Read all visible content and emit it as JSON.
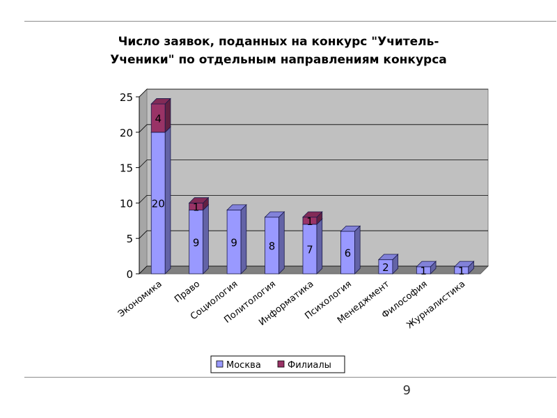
{
  "page": {
    "number": "9"
  },
  "chart_data": {
    "type": "bar",
    "stacked": true,
    "three_d": true,
    "title_lines": [
      "Число заявок, поданных на конкурс \"Учитель-",
      "Ученики\" по отдельным направлениям конкурса"
    ],
    "categories": [
      "Экономика",
      "Право",
      "Социология",
      "Политология",
      "Информатика",
      "Психология",
      "Менеджмент",
      "Философия",
      "Журналистика"
    ],
    "series": [
      {
        "name": "Москва",
        "values": [
          20,
          9,
          9,
          8,
          7,
          6,
          2,
          1,
          1
        ],
        "color": "#9999ff"
      },
      {
        "name": "Филиалы",
        "values": [
          4,
          1,
          0,
          0,
          1,
          0,
          0,
          0,
          0
        ],
        "color": "#993366"
      }
    ],
    "ylim": [
      0,
      25
    ],
    "yticks": [
      "0",
      "5",
      "10",
      "15",
      "20",
      "25"
    ],
    "grid": true,
    "legend_position": "bottom",
    "wall_color": "#c0c0c0",
    "floor_color": "#808080"
  }
}
